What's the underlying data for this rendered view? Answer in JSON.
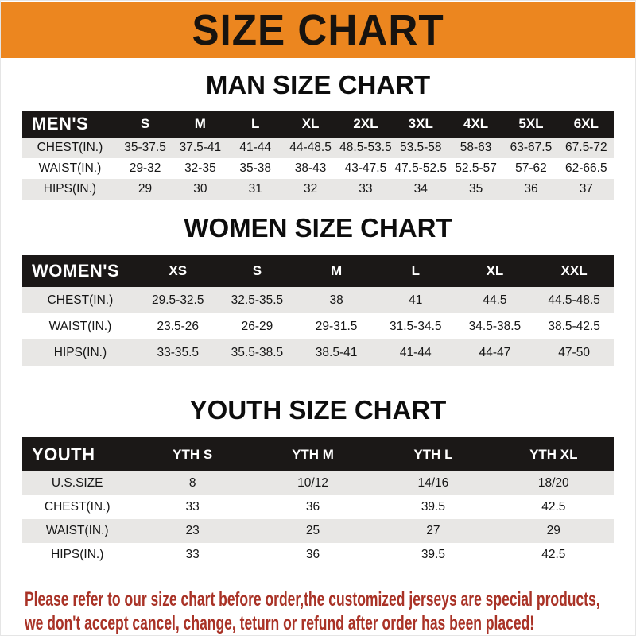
{
  "banner": {
    "title": "SIZE CHART"
  },
  "colors": {
    "banner_bg": "#EC861F",
    "table_header_bg": "#1B1817",
    "row_alt_bg": "#E8E7E5",
    "footer_text": "#A93226"
  },
  "sections": [
    {
      "title": "MAN SIZE CHART",
      "header_label": "MEN'S",
      "columns": [
        "S",
        "M",
        "L",
        "XL",
        "2XL",
        "3XL",
        "4XL",
        "5XL",
        "6XL"
      ],
      "rows": [
        {
          "label": "CHEST(IN.)",
          "values": [
            "35-37.5",
            "37.5-41",
            "41-44",
            "44-48.5",
            "48.5-53.5",
            "53.5-58",
            "58-63",
            "63-67.5",
            "67.5-72"
          ]
        },
        {
          "label": "WAIST(IN.)",
          "values": [
            "29-32",
            "32-35",
            "35-38",
            "38-43",
            "43-47.5",
            "47.5-52.5",
            "52.5-57",
            "57-62",
            "62-66.5"
          ]
        },
        {
          "label": "HIPS(IN.)",
          "values": [
            "29",
            "30",
            "31",
            "32",
            "33",
            "34",
            "35",
            "36",
            "37"
          ]
        }
      ]
    },
    {
      "title": "WOMEN SIZE CHART",
      "header_label": "WOMEN'S",
      "columns": [
        "XS",
        "S",
        "M",
        "L",
        "XL",
        "XXL"
      ],
      "rows": [
        {
          "label": "CHEST(IN.)",
          "values": [
            "29.5-32.5",
            "32.5-35.5",
            "38",
            "41",
            "44.5",
            "44.5-48.5"
          ]
        },
        {
          "label": "WAIST(IN.)",
          "values": [
            "23.5-26",
            "26-29",
            "29-31.5",
            "31.5-34.5",
            "34.5-38.5",
            "38.5-42.5"
          ]
        },
        {
          "label": "HIPS(IN.)",
          "values": [
            "33-35.5",
            "35.5-38.5",
            "38.5-41",
            "41-44",
            "44-47",
            "47-50"
          ]
        }
      ]
    },
    {
      "title": "YOUTH SIZE CHART",
      "header_label": "YOUTH",
      "columns": [
        "YTH S",
        "YTH M",
        "YTH L",
        "YTH XL"
      ],
      "rows": [
        {
          "label": "U.S.SIZE",
          "values": [
            "8",
            "10/12",
            "14/16",
            "18/20"
          ]
        },
        {
          "label": "CHEST(IN.)",
          "values": [
            "33",
            "36",
            "39.5",
            "42.5"
          ]
        },
        {
          "label": "WAIST(IN.)",
          "values": [
            "23",
            "25",
            "27",
            "29"
          ]
        },
        {
          "label": "HIPS(IN.)",
          "values": [
            "33",
            "36",
            "39.5",
            "42.5"
          ]
        }
      ]
    }
  ],
  "footer": {
    "line1": "Please refer to our size chart before order,the customized jerseys are special products,",
    "line2": "we don't accept cancel, change, teturn or refund after order has been placed!"
  }
}
